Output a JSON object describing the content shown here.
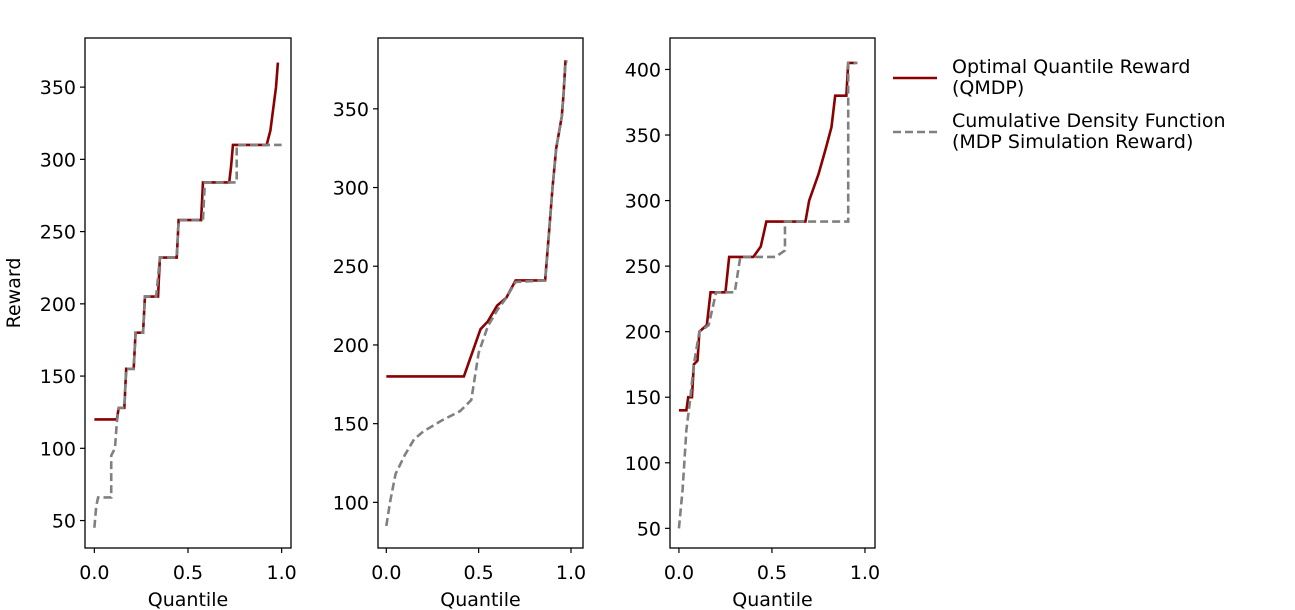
{
  "chart_data": [
    {
      "type": "line",
      "xlabel": "Quantile",
      "ylabel": "Reward",
      "xlim": [
        -0.05,
        1.05
      ],
      "ylim": [
        31,
        384
      ],
      "xticks": [
        {
          "value": 0,
          "label": "0.0"
        },
        {
          "value": 0.5,
          "label": "0.5"
        },
        {
          "value": 1,
          "label": "1.0"
        }
      ],
      "yticks": [
        50,
        100,
        150,
        200,
        250,
        300,
        350
      ],
      "series": [
        {
          "color": "#8b0000",
          "dash": false,
          "x": [
            0,
            0.12,
            0.13,
            0.16,
            0.17,
            0.21,
            0.22,
            0.26,
            0.27,
            0.34,
            0.35,
            0.44,
            0.45,
            0.57,
            0.58,
            0.72,
            0.73,
            0.74,
            0.92,
            0.94,
            0.95,
            0.96,
            0.97,
            0.98
          ],
          "values": [
            120,
            120,
            128,
            128,
            155,
            155,
            180,
            180,
            205,
            205,
            232,
            232,
            258,
            258,
            284,
            284,
            295,
            310,
            310,
            320,
            330,
            340,
            350,
            367
          ]
        },
        {
          "color": "#808080",
          "dash": true,
          "x": [
            0,
            0.01,
            0.02,
            0.09,
            0.09,
            0.11,
            0.12,
            0.13,
            0.16,
            0.17,
            0.21,
            0.22,
            0.26,
            0.27,
            0.33,
            0.35,
            0.44,
            0.45,
            0.58,
            0.59,
            0.76,
            0.76,
            1.0
          ],
          "values": [
            45,
            60,
            66,
            66,
            95,
            100,
            118,
            128,
            128,
            155,
            155,
            180,
            180,
            205,
            205,
            232,
            232,
            258,
            258,
            284,
            284,
            310,
            310
          ]
        }
      ]
    },
    {
      "type": "line",
      "xlabel": "Quantile",
      "xlim": [
        -0.045,
        1.065
      ],
      "ylim": [
        71,
        395
      ],
      "xticks": [
        {
          "value": 0,
          "label": "0.0"
        },
        {
          "value": 0.5,
          "label": "0.5"
        },
        {
          "value": 1,
          "label": "1.0"
        }
      ],
      "yticks": [
        100,
        150,
        200,
        250,
        300,
        350
      ],
      "series": [
        {
          "color": "#8b0000",
          "dash": false,
          "x": [
            0,
            0.42,
            0.45,
            0.48,
            0.51,
            0.55,
            0.6,
            0.65,
            0.7,
            0.86,
            0.88,
            0.9,
            0.92,
            0.95,
            0.96,
            0.97,
            0.98
          ],
          "values": [
            180,
            180,
            190,
            200,
            210,
            215,
            225,
            230,
            241,
            241,
            270,
            300,
            325,
            345,
            360,
            380,
            380
          ]
        },
        {
          "color": "#808080",
          "dash": true,
          "x": [
            0,
            0.02,
            0.05,
            0.1,
            0.15,
            0.2,
            0.3,
            0.4,
            0.46,
            0.5,
            0.55,
            0.6,
            0.65,
            0.7,
            0.86,
            0.88,
            0.9,
            0.92,
            0.95,
            0.96,
            0.97,
            0.98
          ],
          "values": [
            85,
            100,
            118,
            130,
            140,
            145,
            152,
            158,
            165,
            195,
            212,
            222,
            230,
            240,
            241,
            270,
            300,
            325,
            345,
            360,
            380,
            380
          ]
        }
      ]
    },
    {
      "type": "line",
      "xlabel": "Quantile",
      "xlim": [
        -0.048,
        1.054
      ],
      "ylim": [
        35,
        424
      ],
      "xticks": [
        {
          "value": 0,
          "label": "0.0"
        },
        {
          "value": 0.5,
          "label": "0.5"
        },
        {
          "value": 1,
          "label": "1.0"
        }
      ],
      "yticks": [
        50,
        100,
        150,
        200,
        250,
        300,
        350,
        400
      ],
      "series": [
        {
          "name": "Optimal Quantile Reward\n(QMDP)",
          "color": "#8b0000",
          "dash": false,
          "x": [
            0,
            0.04,
            0.05,
            0.07,
            0.08,
            0.1,
            0.11,
            0.15,
            0.17,
            0.25,
            0.27,
            0.4,
            0.44,
            0.47,
            0.68,
            0.7,
            0.75,
            0.79,
            0.82,
            0.84,
            0.9,
            0.91,
            0.95
          ],
          "values": [
            140,
            140,
            150,
            150,
            175,
            178,
            200,
            205,
            230,
            230,
            257,
            257,
            265,
            284,
            284,
            300,
            320,
            340,
            356,
            380,
            380,
            405,
            405
          ]
        },
        {
          "name": "Cumulative Density Function\n(MDP Simulation Reward)",
          "color": "#808080",
          "dash": true,
          "x": [
            0,
            0.02,
            0.04,
            0.06,
            0.08,
            0.11,
            0.16,
            0.2,
            0.3,
            0.33,
            0.52,
            0.57,
            0.57,
            0.91,
            0.91,
            0.96
          ],
          "values": [
            50,
            80,
            125,
            148,
            175,
            200,
            205,
            230,
            230,
            257,
            257,
            262,
            284,
            284,
            405,
            405
          ]
        }
      ]
    }
  ]
}
